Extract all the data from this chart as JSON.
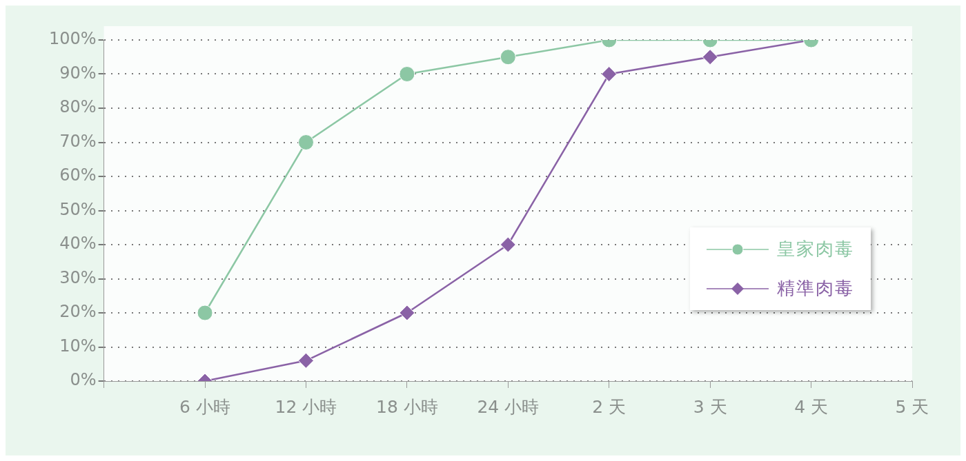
{
  "chart_data": {
    "type": "line",
    "categories": [
      null,
      "6 小時",
      "12 小時",
      "18 小時",
      "24 小時",
      "2 天",
      "3 天",
      "4 天",
      "5 天"
    ],
    "series": [
      {
        "name": "皇家肉毒",
        "color": "#8cc7a4",
        "marker": "circle",
        "values": [
          null,
          20,
          70,
          90,
          95,
          100,
          100,
          100,
          null
        ]
      },
      {
        "name": "精準肉毒",
        "color": "#8a62a6",
        "marker": "diamond",
        "values": [
          null,
          0,
          6,
          20,
          40,
          90,
          95,
          100,
          null
        ]
      }
    ],
    "ylim": [
      0,
      100
    ],
    "yticks": [
      {
        "value": 0,
        "label": "0%"
      },
      {
        "value": 10,
        "label": "10%"
      },
      {
        "value": 20,
        "label": "20%"
      },
      {
        "value": 30,
        "label": "30%"
      },
      {
        "value": 40,
        "label": "40%"
      },
      {
        "value": 50,
        "label": "50%"
      },
      {
        "value": 60,
        "label": "60%"
      },
      {
        "value": 70,
        "label": "70%"
      },
      {
        "value": 80,
        "label": "80%"
      },
      {
        "value": 90,
        "label": "90%"
      },
      {
        "value": 100,
        "label": "100%"
      }
    ],
    "grid": "y",
    "legend": "right",
    "line_style": "solid"
  }
}
